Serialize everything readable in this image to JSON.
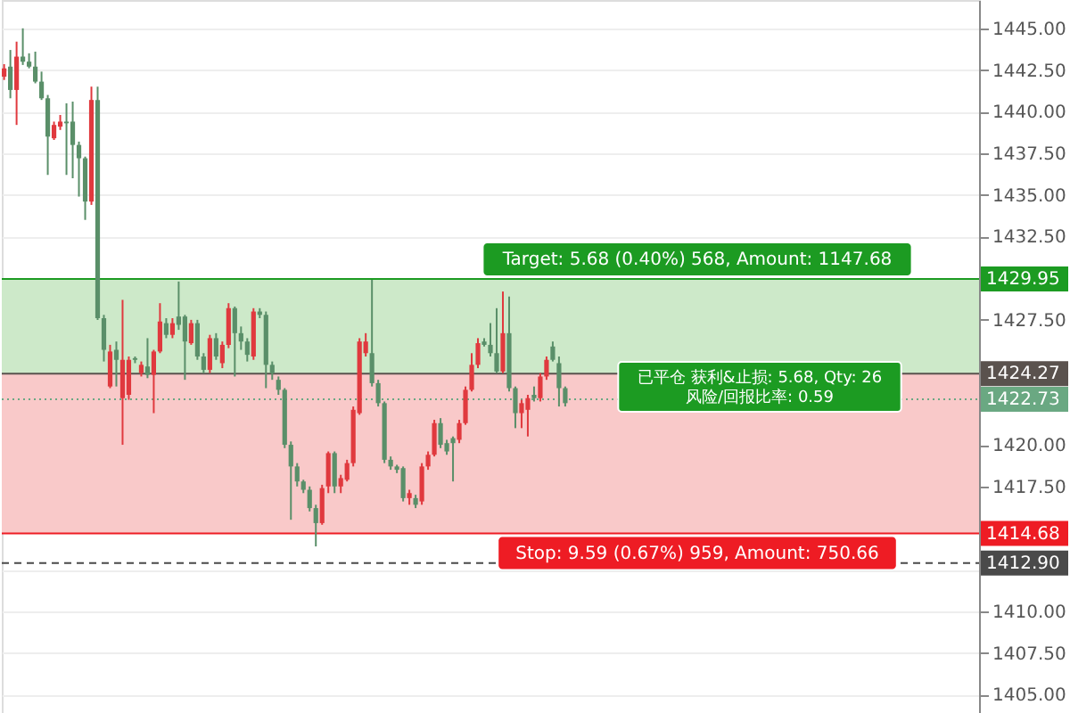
{
  "chart_data": {
    "type": "candlestick",
    "categories": [
      null,
      null,
      null,
      null,
      null,
      null,
      null,
      null,
      null,
      null,
      null,
      null,
      null,
      null,
      null,
      null,
      null,
      null,
      null,
      null,
      null,
      null,
      null,
      null,
      null,
      null,
      null,
      null,
      null,
      null,
      null,
      null,
      null,
      null,
      null,
      null,
      null,
      null,
      null,
      null,
      null,
      null,
      null,
      null,
      null,
      null,
      null,
      null,
      null,
      null,
      null,
      null,
      null,
      null,
      null,
      null,
      null,
      null,
      null,
      null,
      null,
      null,
      null,
      null,
      null,
      null,
      null,
      null,
      null,
      null,
      null,
      null,
      null,
      null,
      null,
      null,
      null,
      null,
      null,
      null,
      null,
      null,
      null,
      null,
      null,
      null,
      null,
      null,
      null,
      null,
      null,
      null,
      null,
      null,
      null,
      null,
      null,
      null,
      null,
      null,
      null,
      null,
      null,
      null,
      null,
      null,
      null,
      null,
      null,
      null,
      null,
      null,
      null,
      null,
      null,
      null,
      null,
      null,
      null,
      null,
      null,
      null,
      null,
      null,
      null,
      null,
      null,
      null,
      null,
      null,
      null,
      null,
      null,
      null,
      null,
      null,
      null,
      null,
      null,
      null,
      null,
      null,
      null,
      null,
      null,
      null,
      null,
      null,
      null,
      null,
      null,
      null,
      null,
      null,
      null,
      null,
      null
    ],
    "ohlc": [
      [
        1442.1,
        1442.85,
        1441.9,
        1442.6
      ],
      [
        1442.7,
        1443.7,
        1440.8,
        1441.3
      ],
      [
        1441.3,
        1444.2,
        1439.2,
        1443.3
      ],
      [
        1443.3,
        1445.0,
        1442.8,
        1443.0
      ],
      [
        1443.0,
        1443.5,
        1442.6,
        1442.7
      ],
      [
        1442.7,
        1443.6,
        1441.7,
        1441.8
      ],
      [
        1441.8,
        1442.4,
        1440.7,
        1440.8
      ],
      [
        1440.8,
        1441.0,
        1436.2,
        1438.5
      ],
      [
        1438.4,
        1439.4,
        1438.3,
        1439.2
      ],
      [
        1439.1,
        1439.8,
        1438.9,
        1439.4
      ],
      [
        1439.4,
        1440.5,
        1436.2,
        1439.3
      ],
      [
        1439.4,
        1440.6,
        1436.0,
        1438.0
      ],
      [
        1438.0,
        1438.2,
        1434.9,
        1437.2
      ],
      [
        1437.2,
        1437.3,
        1433.5,
        1434.6
      ],
      [
        1434.6,
        1441.5,
        1434.4,
        1440.7
      ],
      [
        1440.7,
        1441.5,
        1427.5,
        1427.6
      ],
      [
        1427.6,
        1427.8,
        1425.0,
        1425.7
      ],
      [
        1423.5,
        1426.0,
        1423.4,
        1425.6
      ],
      [
        1425.7,
        1426.2,
        1423.5,
        1425.1
      ],
      [
        1422.8,
        1428.7,
        1420.0,
        1425.1
      ],
      [
        1423.0,
        1425.3,
        1422.7,
        1425.1
      ],
      [
        1425.2,
        1425.3,
        1424.9,
        1425.1
      ],
      [
        1424.3,
        1425.0,
        1424.1,
        1424.8
      ],
      [
        1424.7,
        1426.4,
        1424.0,
        1424.2
      ],
      [
        1424.2,
        1425.7,
        1421.9,
        1425.6
      ],
      [
        1425.6,
        1428.5,
        1425.5,
        1427.4
      ],
      [
        1427.3,
        1427.6,
        1426.4,
        1426.6
      ],
      [
        1426.6,
        1427.6,
        1426.4,
        1427.3
      ],
      [
        1427.7,
        1429.8,
        1426.9,
        1427.2
      ],
      [
        1427.7,
        1427.8,
        1423.9,
        1426.2
      ],
      [
        1426.1,
        1427.5,
        1426.0,
        1427.3
      ],
      [
        1427.3,
        1427.5,
        1425.1,
        1425.3
      ],
      [
        1425.3,
        1425.5,
        1424.3,
        1424.5
      ],
      [
        1424.5,
        1426.6,
        1424.3,
        1426.4
      ],
      [
        1426.4,
        1426.7,
        1425.1,
        1425.3
      ],
      [
        1424.9,
        1426.2,
        1424.6,
        1426.0
      ],
      [
        1426.0,
        1428.5,
        1425.8,
        1428.2
      ],
      [
        1428.2,
        1428.3,
        1424.1,
        1426.7
      ],
      [
        1426.7,
        1427.1,
        1425.7,
        1426.2
      ],
      [
        1426.2,
        1426.4,
        1425.0,
        1425.4
      ],
      [
        1425.3,
        1428.2,
        1425.1,
        1428.0
      ],
      [
        1428.0,
        1428.2,
        1427.6,
        1427.8
      ],
      [
        1427.8,
        1428.0,
        1423.4,
        1424.8
      ],
      [
        1424.8,
        1425.0,
        1423.9,
        1424.3
      ],
      [
        1423.9,
        1424.1,
        1423.0,
        1423.3
      ],
      [
        1423.3,
        1423.4,
        1419.8,
        1420.0
      ],
      [
        1420.0,
        1420.2,
        1415.5,
        1418.7
      ],
      [
        1418.7,
        1418.9,
        1417.5,
        1417.8
      ],
      [
        1417.8,
        1417.9,
        1417.1,
        1417.3
      ],
      [
        1417.3,
        1417.5,
        1416.0,
        1416.2
      ],
      [
        1416.2,
        1416.4,
        1413.9,
        1415.3
      ],
      [
        1415.3,
        1417.6,
        1415.2,
        1417.4
      ],
      [
        1417.5,
        1419.6,
        1417.1,
        1419.5
      ],
      [
        1419.5,
        1419.6,
        1417.1,
        1417.5
      ],
      [
        1417.5,
        1418.2,
        1417.1,
        1418.0
      ],
      [
        1417.9,
        1419.1,
        1417.8,
        1418.9
      ],
      [
        1418.9,
        1422.3,
        1418.7,
        1422.1
      ],
      [
        1421.9,
        1426.4,
        1421.8,
        1426.2
      ],
      [
        1425.5,
        1426.7,
        1425.3,
        1426.2
      ],
      [
        1425.5,
        1429.9,
        1423.5,
        1423.7
      ],
      [
        1423.7,
        1423.9,
        1422.3,
        1422.5
      ],
      [
        1422.5,
        1422.6,
        1418.9,
        1419.1
      ],
      [
        1419.1,
        1419.3,
        1418.5,
        1418.7
      ],
      [
        1418.7,
        1418.8,
        1418.3,
        1418.5
      ],
      [
        1418.6,
        1418.7,
        1416.6,
        1416.8
      ],
      [
        1416.8,
        1417.3,
        1416.4,
        1417.1
      ],
      [
        1416.8,
        1417.0,
        1416.2,
        1416.4
      ],
      [
        1416.6,
        1418.9,
        1416.4,
        1418.7
      ],
      [
        1418.7,
        1419.6,
        1418.5,
        1419.4
      ],
      [
        1419.4,
        1421.5,
        1419.3,
        1421.3
      ],
      [
        1421.3,
        1421.6,
        1419.8,
        1420.0
      ],
      [
        1420.1,
        1420.3,
        1419.4,
        1419.6
      ],
      [
        1420.4,
        1420.5,
        1417.8,
        1420.1
      ],
      [
        1420.3,
        1421.5,
        1420.1,
        1421.3
      ],
      [
        1421.3,
        1423.5,
        1421.2,
        1423.3
      ],
      [
        1423.3,
        1425.5,
        1423.2,
        1424.8
      ],
      [
        1424.8,
        1426.4,
        1424.6,
        1426.1
      ],
      [
        1426.2,
        1426.4,
        1425.9,
        1426.0
      ],
      [
        1426.0,
        1427.3,
        1425.3,
        1425.5
      ],
      [
        1425.5,
        1428.2,
        1424.3,
        1424.4
      ],
      [
        1424.4,
        1429.2,
        1424.3,
        1426.7
      ],
      [
        1426.7,
        1428.9,
        1423.2,
        1423.4
      ],
      [
        1423.4,
        1423.5,
        1421.0,
        1421.9
      ],
      [
        1421.9,
        1422.7,
        1421.0,
        1422.5
      ],
      [
        1422.1,
        1423.0,
        1420.5,
        1422.8
      ],
      [
        1423.0,
        1423.5,
        1422.6,
        1422.8
      ],
      [
        1422.8,
        1424.3,
        1422.6,
        1424.1
      ],
      [
        1424.1,
        1425.3,
        1423.9,
        1425.1
      ],
      [
        1425.9,
        1426.2,
        1425.0,
        1425.1
      ],
      [
        1424.9,
        1425.3,
        1422.3,
        1423.4
      ],
      [
        1423.4,
        1423.5,
        1422.3,
        1422.5
      ],
      null,
      null,
      null,
      null,
      null,
      null,
      null,
      null,
      null,
      null,
      null,
      null,
      null,
      null,
      null,
      null,
      null,
      null,
      null,
      null,
      null,
      null,
      null,
      null,
      null,
      null,
      null,
      null,
      null,
      null,
      null,
      null,
      null,
      null,
      null,
      null,
      null,
      null,
      null,
      null,
      null,
      null,
      null,
      null,
      null,
      null,
      null,
      null,
      null,
      null,
      null,
      null,
      null,
      null,
      null,
      null,
      null,
      null,
      null,
      null,
      null,
      null,
      null,
      null,
      null,
      null
    ],
    "colors": [
      "#e0393e",
      "#5a8f69",
      "#e0393e",
      "#5a8f69",
      "#5a8f69",
      "#5a8f69",
      "#5a8f69",
      "#5a8f69",
      "#e0393e",
      "#e0393e",
      "#5a8f69",
      "#5a8f69",
      "#5a8f69",
      "#5a8f69",
      "#e0393e",
      "#5a8f69",
      "#5a8f69",
      "#e0393e",
      "#5a8f69",
      "#e0393e",
      "#e0393e",
      "#5a8f69",
      "#e0393e",
      "#5a8f69",
      "#e0393e",
      "#e0393e",
      "#5a8f69",
      "#e0393e",
      "#5a8f69",
      "#5a8f69",
      "#e0393e",
      "#5a8f69",
      "#5a8f69",
      "#e0393e",
      "#5a8f69",
      "#e0393e",
      "#e0393e",
      "#5a8f69",
      "#5a8f69",
      "#5a8f69",
      "#e0393e",
      "#5a8f69",
      "#5a8f69",
      "#5a8f69",
      "#5a8f69",
      "#5a8f69",
      "#5a8f69",
      "#5a8f69",
      "#5a8f69",
      "#5a8f69",
      "#5a8f69",
      "#e0393e",
      "#e0393e",
      "#5a8f69",
      "#e0393e",
      "#e0393e",
      "#e0393e",
      "#e0393e",
      "#e0393e",
      "#5a8f69",
      "#5a8f69",
      "#5a8f69",
      "#5a8f69",
      "#5a8f69",
      "#5a8f69",
      "#e0393e",
      "#5a8f69",
      "#e0393e",
      "#e0393e",
      "#e0393e",
      "#5a8f69",
      "#5a8f69",
      "#5a8f69",
      "#e0393e",
      "#e0393e",
      "#e0393e",
      "#e0393e",
      "#5a8f69",
      "#5a8f69",
      "#5a8f69",
      "#e0393e",
      "#5a8f69",
      "#5a8f69",
      "#e0393e",
      "#e0393e",
      "#5a8f69",
      "#e0393e",
      "#e0393e",
      "#5a8f69",
      "#5a8f69",
      "#5a8f69",
      null,
      null,
      null,
      null,
      null,
      null,
      null,
      null,
      null,
      null,
      null,
      null,
      null,
      null,
      null,
      null,
      null,
      null,
      null,
      null,
      null,
      null,
      null,
      null,
      null,
      null,
      null,
      null,
      null,
      null,
      null,
      null,
      null,
      null,
      null,
      null,
      null,
      null,
      null,
      null,
      null,
      null,
      null,
      null,
      null,
      null,
      null,
      null,
      null,
      null,
      null,
      null,
      null,
      null,
      null,
      null,
      null,
      null,
      null,
      null,
      null,
      null,
      null,
      null,
      null,
      null
    ],
    "ylim": [
      1403.9,
      1446.7
    ],
    "yticks": [
      {
        "value": 1405,
        "label": "1405.00"
      },
      {
        "value": 1407.5,
        "label": "1407.50"
      },
      {
        "value": 1410,
        "label": "1410.00"
      },
      {
        "value": 1412.5,
        "label": null
      },
      {
        "value": 1415,
        "label": null
      },
      {
        "value": 1417.5,
        "label": "1417.50"
      },
      {
        "value": 1420,
        "label": "1420.00"
      },
      {
        "value": 1422.5,
        "label": null
      },
      {
        "value": 1425,
        "label": null
      },
      {
        "value": 1427.5,
        "label": "1427.50"
      },
      {
        "value": 1430,
        "label": null
      },
      {
        "value": 1432.5,
        "label": "1432.50"
      },
      {
        "value": 1435,
        "label": "1435.00"
      },
      {
        "value": 1437.5,
        "label": "1437.50"
      },
      {
        "value": 1440,
        "label": "1440.00"
      },
      {
        "value": 1442.5,
        "label": "1442.50"
      },
      {
        "value": 1445,
        "label": "1445.00"
      }
    ],
    "tick_labels": "y",
    "grid": "y",
    "bands": [
      {
        "axis": "y",
        "from": 1424.27,
        "to": 1429.95,
        "label": "Target: 5.68 (0.40%) 568, Amount: 1147.68",
        "color": "#cde9c9"
      },
      {
        "axis": "y",
        "from": 1414.68,
        "to": 1424.27,
        "label": "Stop: 9.59 (0.67%) 959, Amount: 750.66",
        "color": "#f9c9c9"
      }
    ],
    "ref_lines": [
      {
        "axis": "y",
        "value": 1429.95,
        "label": "1429.95",
        "color": "#1c9b22",
        "line_style": "solid"
      },
      {
        "axis": "y",
        "value": 1424.27,
        "label": "1424.27",
        "color": "#5a524e",
        "line_style": "solid"
      },
      {
        "axis": "y",
        "value": 1422.73,
        "label": "1422.73",
        "color": "#6aa882",
        "line_style": "dotted"
      },
      {
        "axis": "y",
        "value": 1414.68,
        "label": "1414.68",
        "color": "#ee1c24",
        "line_style": "solid"
      },
      {
        "axis": "y",
        "value": 1412.9,
        "label": "1412.90",
        "color": "#4a4a4a",
        "line_style": "dashed"
      }
    ],
    "annotations": [
      "已平仓 获利&止损: 5.68, Qty: 26\n风险/回报比率: 0.59"
    ]
  }
}
